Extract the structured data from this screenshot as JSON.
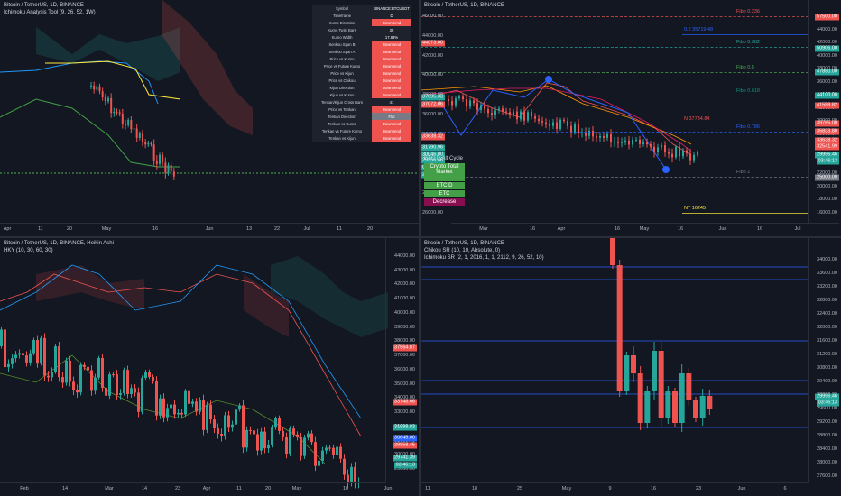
{
  "colors": {
    "bg": "#131722",
    "up": "#26a69a",
    "down": "#ef5350",
    "grid": "#2a2e39"
  },
  "panes": [
    {
      "id": "tl",
      "legend": [
        "Bitcoin / TetherUS, 1D, BINANCE",
        "Ichimoku Analysis Tool (9, 26, 52, 1W)"
      ],
      "xticks": [
        "Apr",
        "11",
        "20",
        "May",
        "16",
        "Jun",
        "13",
        "22",
        "Jul",
        "11",
        "20"
      ],
      "yticks": [],
      "tags": []
    },
    {
      "id": "tr",
      "legend": [
        "Bitcoin / TetherUS, 1D, BINANCE"
      ],
      "yunit": "USDT",
      "xticks": [
        "Mar",
        "16",
        "Apr",
        "16",
        "May",
        "16",
        "Jun",
        "16",
        "Jul"
      ],
      "yticks": [
        "46000.00",
        "44000.00",
        "42000.00",
        "40000.00",
        "38000.00",
        "36000.00",
        "34000.00",
        "32000.00",
        "30000.00",
        "28000.00",
        "26000.00",
        "24000.00",
        "22000.00",
        "20000.00",
        "18000.00",
        "16000.00"
      ],
      "left_yticks": [
        "46000.00",
        "44000.00",
        "42000.00",
        "40000.00",
        "38000.00",
        "36000.00",
        "34000.00",
        "32000.00",
        "30000.00",
        "28000.00",
        "26000.00"
      ],
      "tags": [
        {
          "text": "57500.00",
          "color": "#ef5350"
        },
        {
          "text": "50906.00",
          "color": "#26a69a"
        },
        {
          "text": "47880.00",
          "color": "#26a69a"
        },
        {
          "text": "44100.00",
          "color": "#26a69a"
        },
        {
          "text": "41558.82",
          "color": "#ef5350"
        },
        {
          "text": "39765.00",
          "color": "#ef5350"
        },
        {
          "text": "35833.80",
          "color": "#ef5350"
        },
        {
          "text": "33638.32",
          "color": "#ef5350"
        },
        {
          "text": "32541.99",
          "color": "#ef5350"
        },
        {
          "text": "29956.46",
          "color": "#26a69a"
        },
        {
          "text": "03:46:13",
          "color": "#26a69a"
        },
        {
          "text": "25000.00",
          "color": "#787b86"
        }
      ],
      "left_tags": [
        {
          "text": "44073.00",
          "color": "#ef5350"
        },
        {
          "text": "37695.33",
          "color": "#26a69a"
        },
        {
          "text": "37072.06",
          "color": "#ef5350"
        },
        {
          "text": "33638.32",
          "color": "#ef5350"
        },
        {
          "text": "31790.96",
          "color": "#26a69a"
        },
        {
          "text": "30046.00",
          "color": "#26a69a"
        },
        {
          "text": "29956.46",
          "color": "#26a69a"
        },
        {
          "text": "03:46:13",
          "color": "#26a69a"
        },
        {
          "text": "29050.00",
          "color": "#26a69a"
        }
      ],
      "fibs": [
        {
          "label": "Fibo 0.236",
          "color": "#ef5350"
        },
        {
          "label": "0.2 35719.48",
          "color": "#2962ff"
        },
        {
          "label": "Fibo 0.382",
          "color": "#26a69a"
        },
        {
          "label": "Fibo 0.5",
          "color": "#4caf50"
        },
        {
          "label": "Fibo 0.618",
          "color": "#089981"
        },
        {
          "label": "N 37734.84",
          "color": "#ef5350"
        },
        {
          "label": "Fibo 0.786",
          "color": "#2962ff"
        },
        {
          "label": "Fibo 1",
          "color": "#787b86"
        },
        {
          "label": "NT 16245",
          "color": "#ffeb3b"
        }
      ]
    },
    {
      "id": "bl",
      "legend": [
        "Bitcoin / TetherUS, 1D, BINANCE, Heikin Ashi",
        "HKY (10, 30, 60, 30)"
      ],
      "xticks": [
        "Feb",
        "14",
        "Mar",
        "14",
        "23",
        "Apr",
        "11",
        "20",
        "May",
        "16",
        "Jun"
      ],
      "yticks": [
        "44000.00",
        "43000.00",
        "42000.00",
        "41000.00",
        "40000.00",
        "39000.00",
        "38000.00",
        "37000.00",
        "36000.00",
        "35000.00",
        "34000.00",
        "33000.00",
        "32000.00",
        "31000.00",
        "30000.00",
        "29000.00"
      ],
      "tags": [
        {
          "text": "37564.87",
          "color": "#ef5350"
        },
        {
          "text": "33748.66",
          "color": "#ef5350"
        },
        {
          "text": "31898.83",
          "color": "#26a69a"
        },
        {
          "text": "30645.00",
          "color": "#2962ff"
        },
        {
          "text": "29958.45",
          "color": "#ef5350"
        },
        {
          "text": "29741.39",
          "color": "#26a69a"
        },
        {
          "text": "03:46:13",
          "color": "#26a69a"
        }
      ]
    },
    {
      "id": "br",
      "legend": [
        "Bitcoin / TetherUS, 1D, BINANCE",
        "Chikou SR (10, 10, Absolute, 0)",
        "Ichimoku SR (2, 1, 2016, 1, 1, 2112, 9, 26, 52, 10)"
      ],
      "yunit": "USDT",
      "xticks": [
        "11",
        "18",
        "25",
        "May",
        "9",
        "16",
        "23",
        "Jun",
        "6"
      ],
      "yticks": [
        "34000.00",
        "33600.00",
        "33200.00",
        "32800.00",
        "32400.00",
        "32000.00",
        "31600.00",
        "31200.00",
        "30800.00",
        "30400.00",
        "30000.00",
        "29600.00",
        "29200.00",
        "28800.00",
        "28400.00",
        "28000.00",
        "27600.00"
      ],
      "tags": [
        {
          "text": "29956.46",
          "color": "#26a69a"
        },
        {
          "text": "03:46:13",
          "color": "#26a69a"
        }
      ]
    }
  ],
  "table": {
    "rows": [
      {
        "k": "Symbol",
        "v": "BINANCE:BTCUSDT",
        "c": "#1e222d"
      },
      {
        "k": "Timeframe",
        "v": "D",
        "c": "#1e222d"
      },
      {
        "k": "Kumo Direction",
        "v": "Downtrend",
        "c": "#ef5350"
      },
      {
        "k": "Kumo Twist Bars",
        "v": "35",
        "c": "#1e222d"
      },
      {
        "k": "Kumo Width",
        "v": "17.83%",
        "c": "#1e222d"
      },
      {
        "k": "Senkou Span B",
        "v": "Downtrend",
        "c": "#ef5350"
      },
      {
        "k": "Senkou Span A",
        "v": "Downtrend",
        "c": "#ef5350"
      },
      {
        "k": "Price vs Kumo",
        "v": "Downtrend",
        "c": "#ef5350"
      },
      {
        "k": "Price vs Future Kumo",
        "v": "Downtrend",
        "c": "#ef5350"
      },
      {
        "k": "Price vs Kijun",
        "v": "Downtrend",
        "c": "#ef5350"
      },
      {
        "k": "Price vs Chikou",
        "v": "Downtrend",
        "c": "#ef5350"
      },
      {
        "k": "Kijun Direction",
        "v": "Downtrend",
        "c": "#ef5350"
      },
      {
        "k": "Kijun vs Kumo",
        "v": "Downtrend",
        "c": "#ef5350"
      },
      {
        "k": "Tenkan/Kijun Cross Bars",
        "v": "41",
        "c": "#1e222d"
      },
      {
        "k": "Price vs Tenkan",
        "v": "Downtrend",
        "c": "#ef5350"
      },
      {
        "k": "Tenkan Direction",
        "v": "Flat",
        "c": "#787b86"
      },
      {
        "k": "Tenkan vs Kumo",
        "v": "Downtrend",
        "c": "#ef5350"
      },
      {
        "k": "Tenkan vs Future Kumo",
        "v": "Downtrend",
        "c": "#ef5350"
      },
      {
        "k": "Tenkan vs Kijun",
        "v": "Downtrend",
        "c": "#ef5350"
      }
    ]
  },
  "cycle": {
    "title": "BTC.D Alt Cycle",
    "items": [
      {
        "label": "Crypto Total Market",
        "c": "#43a047"
      },
      {
        "label": "BTC.D",
        "c": "#43a047"
      },
      {
        "label": "ETC",
        "c": "#43a047"
      },
      {
        "label": "Decrease",
        "c": "#880e4f"
      }
    ]
  }
}
